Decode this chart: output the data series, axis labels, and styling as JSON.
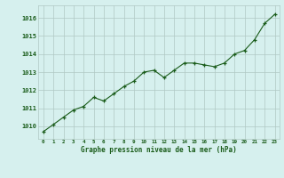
{
  "x": [
    0,
    1,
    2,
    3,
    4,
    5,
    6,
    7,
    8,
    9,
    10,
    11,
    12,
    13,
    14,
    15,
    16,
    17,
    18,
    19,
    20,
    21,
    22,
    23
  ],
  "y": [
    1009.7,
    1010.1,
    1010.5,
    1010.9,
    1011.1,
    1011.6,
    1011.4,
    1011.8,
    1012.2,
    1012.5,
    1013.0,
    1013.1,
    1012.7,
    1013.1,
    1013.5,
    1013.5,
    1013.4,
    1013.3,
    1013.5,
    1014.0,
    1014.2,
    1014.8,
    1015.7,
    1016.2
  ],
  "line_color": "#1a5c1a",
  "marker": "+",
  "marker_color": "#1a5c1a",
  "bg_color": "#d6f0ee",
  "grid_color": "#b0c8c4",
  "xlabel": "Graphe pression niveau de la mer (hPa)",
  "xlabel_color": "#1a5c1a",
  "tick_color": "#1a5c1a",
  "ytick_labels": [
    "1010",
    "1011",
    "1012",
    "1013",
    "1014",
    "1015",
    "1016"
  ],
  "ytick_vals": [
    1010,
    1011,
    1012,
    1013,
    1014,
    1015,
    1016
  ],
  "ylim": [
    1009.3,
    1016.7
  ],
  "xlim": [
    -0.5,
    23.5
  ]
}
